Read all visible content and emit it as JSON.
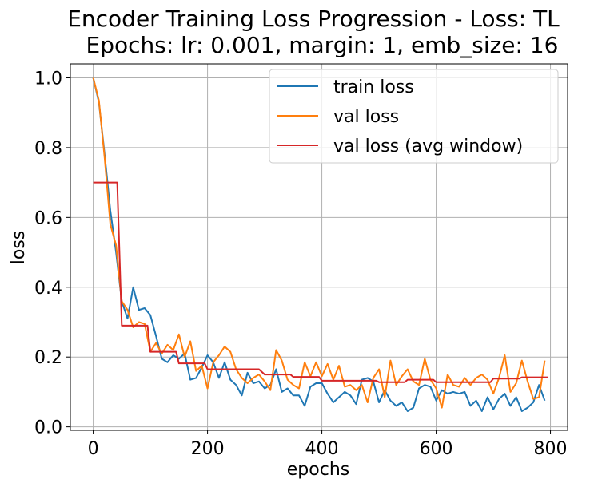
{
  "chart_data": {
    "type": "line",
    "title": "Encoder Training Loss Progression - Loss: TL",
    "subtitle": "Epochs: lr: 0.001, margin: 1, emb_size: 16",
    "xlabel": "epochs",
    "ylabel": "loss",
    "xlim": [
      -40,
      830
    ],
    "ylim": [
      -0.01,
      1.04
    ],
    "xticks": [
      0,
      200,
      400,
      600,
      800
    ],
    "yticks": [
      0.0,
      0.2,
      0.4,
      0.6,
      0.8,
      1.0
    ],
    "xtick_labels": [
      "0",
      "200",
      "400",
      "600",
      "800"
    ],
    "ytick_labels": [
      "0.0",
      "0.2",
      "0.4",
      "0.6",
      "0.8",
      "1.0"
    ],
    "grid": true,
    "legend_position": "top-right",
    "x": [
      0,
      10,
      20,
      30,
      40,
      50,
      60,
      70,
      80,
      90,
      100,
      110,
      120,
      130,
      140,
      150,
      160,
      170,
      180,
      190,
      200,
      210,
      220,
      230,
      240,
      250,
      260,
      270,
      280,
      290,
      300,
      310,
      320,
      330,
      340,
      350,
      360,
      370,
      380,
      390,
      400,
      410,
      420,
      430,
      440,
      450,
      460,
      470,
      480,
      490,
      500,
      510,
      520,
      530,
      540,
      550,
      560,
      570,
      580,
      590,
      600,
      610,
      620,
      630,
      640,
      650,
      660,
      670,
      680,
      690,
      700,
      710,
      720,
      730,
      740,
      750,
      760,
      770,
      780,
      790
    ],
    "series": [
      {
        "name": "train loss",
        "color": "#1f77b4",
        "values": [
          1.0,
          0.93,
          0.78,
          0.62,
          0.5,
          0.36,
          0.31,
          0.4,
          0.335,
          0.34,
          0.32,
          0.26,
          0.195,
          0.185,
          0.205,
          0.195,
          0.21,
          0.135,
          0.14,
          0.17,
          0.205,
          0.185,
          0.14,
          0.185,
          0.135,
          0.12,
          0.09,
          0.155,
          0.125,
          0.13,
          0.11,
          0.12,
          0.165,
          0.1,
          0.11,
          0.09,
          0.09,
          0.06,
          0.115,
          0.125,
          0.125,
          0.095,
          0.07,
          0.085,
          0.1,
          0.09,
          0.065,
          0.135,
          0.14,
          0.13,
          0.07,
          0.105,
          0.075,
          0.06,
          0.07,
          0.045,
          0.055,
          0.11,
          0.12,
          0.115,
          0.075,
          0.105,
          0.095,
          0.1,
          0.095,
          0.1,
          0.06,
          0.075,
          0.045,
          0.085,
          0.05,
          0.08,
          0.095,
          0.06,
          0.085,
          0.045,
          0.055,
          0.07,
          0.12,
          0.075
        ]
      },
      {
        "name": "val loss",
        "color": "#ff7f0e",
        "values": [
          1.0,
          0.935,
          0.77,
          0.58,
          0.52,
          0.36,
          0.335,
          0.285,
          0.3,
          0.295,
          0.215,
          0.24,
          0.21,
          0.235,
          0.22,
          0.265,
          0.2,
          0.245,
          0.16,
          0.175,
          0.11,
          0.185,
          0.205,
          0.23,
          0.215,
          0.165,
          0.14,
          0.125,
          0.14,
          0.15,
          0.13,
          0.105,
          0.22,
          0.19,
          0.135,
          0.12,
          0.11,
          0.185,
          0.145,
          0.185,
          0.145,
          0.18,
          0.135,
          0.175,
          0.115,
          0.12,
          0.105,
          0.12,
          0.07,
          0.14,
          0.165,
          0.085,
          0.19,
          0.12,
          0.145,
          0.165,
          0.13,
          0.12,
          0.195,
          0.135,
          0.11,
          0.055,
          0.15,
          0.12,
          0.115,
          0.14,
          0.12,
          0.14,
          0.15,
          0.135,
          0.095,
          0.14,
          0.205,
          0.1,
          0.125,
          0.19,
          0.13,
          0.08,
          0.085,
          0.19
        ]
      },
      {
        "name": "val loss (avg window)",
        "color": "#d62728",
        "steps": [
          {
            "x": 0,
            "y": 0.7
          },
          {
            "x": 42,
            "y": 0.7
          },
          {
            "x": 50,
            "y": 0.29
          },
          {
            "x": 95,
            "y": 0.29
          },
          {
            "x": 100,
            "y": 0.215
          },
          {
            "x": 145,
            "y": 0.215
          },
          {
            "x": 150,
            "y": 0.182
          },
          {
            "x": 195,
            "y": 0.182
          },
          {
            "x": 200,
            "y": 0.165
          },
          {
            "x": 290,
            "y": 0.165
          },
          {
            "x": 300,
            "y": 0.15
          },
          {
            "x": 345,
            "y": 0.15
          },
          {
            "x": 350,
            "y": 0.143
          },
          {
            "x": 395,
            "y": 0.143
          },
          {
            "x": 400,
            "y": 0.132
          },
          {
            "x": 495,
            "y": 0.132
          },
          {
            "x": 500,
            "y": 0.128
          },
          {
            "x": 545,
            "y": 0.128
          },
          {
            "x": 550,
            "y": 0.135
          },
          {
            "x": 595,
            "y": 0.135
          },
          {
            "x": 600,
            "y": 0.128
          },
          {
            "x": 695,
            "y": 0.128
          },
          {
            "x": 700,
            "y": 0.138
          },
          {
            "x": 745,
            "y": 0.138
          },
          {
            "x": 750,
            "y": 0.142
          },
          {
            "x": 795,
            "y": 0.142
          }
        ]
      }
    ]
  }
}
